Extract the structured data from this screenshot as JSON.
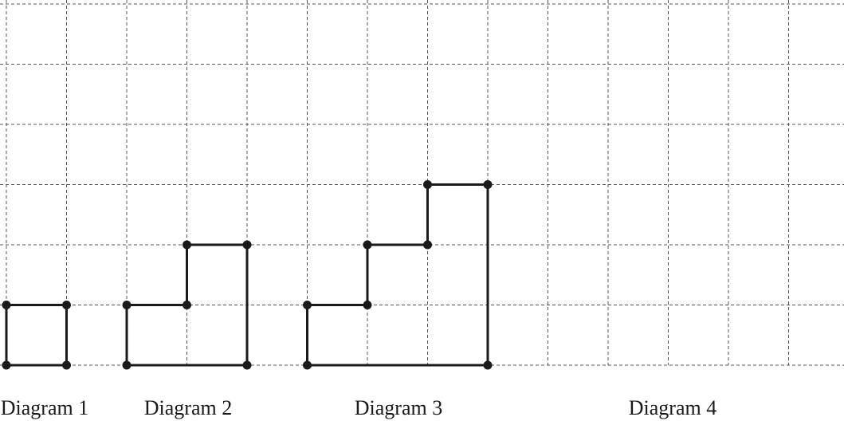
{
  "grid": {
    "columns": 14,
    "rows": 6,
    "line_color": "#555555",
    "line_style": "dashed"
  },
  "diagrams": [
    {
      "label": "Diagram 1",
      "outline": [
        [
          0,
          0
        ],
        [
          1,
          0
        ],
        [
          1,
          1
        ],
        [
          0,
          1
        ]
      ],
      "dots": [
        [
          0,
          0
        ],
        [
          1,
          0
        ],
        [
          1,
          1
        ],
        [
          0,
          1
        ]
      ]
    },
    {
      "label": "Diagram 2",
      "outline": [
        [
          2,
          0
        ],
        [
          4,
          0
        ],
        [
          4,
          2
        ],
        [
          3,
          2
        ],
        [
          3,
          1
        ],
        [
          2,
          1
        ]
      ],
      "dots": [
        [
          2,
          0
        ],
        [
          4,
          0
        ],
        [
          4,
          2
        ],
        [
          3,
          2
        ],
        [
          3,
          1
        ],
        [
          2,
          1
        ]
      ]
    },
    {
      "label": "Diagram 3",
      "outline": [
        [
          5,
          0
        ],
        [
          8,
          0
        ],
        [
          8,
          3
        ],
        [
          7,
          3
        ],
        [
          7,
          2
        ],
        [
          6,
          2
        ],
        [
          6,
          1
        ],
        [
          5,
          1
        ]
      ],
      "dots": [
        [
          5,
          0
        ],
        [
          8,
          0
        ],
        [
          8,
          3
        ],
        [
          7,
          3
        ],
        [
          7,
          2
        ],
        [
          6,
          2
        ],
        [
          6,
          1
        ],
        [
          5,
          1
        ]
      ]
    },
    {
      "label": "Diagram 4",
      "outline": [],
      "dots": []
    }
  ],
  "colors": {
    "shape_stroke": "#1a1a1a",
    "dot_fill": "#1a1a1a"
  }
}
